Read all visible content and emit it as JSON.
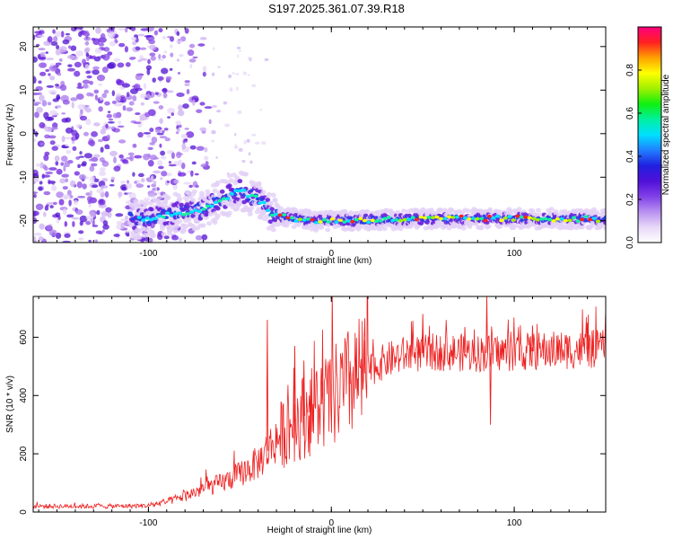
{
  "title": "S197.2025.361.07.39.R18",
  "chart_data": [
    {
      "type": "heatmap",
      "xlabel": "Height of straight line (km)",
      "ylabel": "Frequency (Hz)",
      "xlim": [
        -163,
        150
      ],
      "ylim": [
        -25,
        24.5
      ],
      "xticks": [
        -100,
        0,
        100
      ],
      "yticks": [
        -20,
        -10,
        0,
        10,
        20
      ],
      "grid": false,
      "colorbar": {
        "label": "Normalized spectral amplitude",
        "range": [
          0,
          1
        ],
        "ticks": [
          0.0,
          0.2,
          0.4,
          0.6,
          0.8
        ],
        "colors": [
          "#ffffff",
          "#e8d8f8",
          "#b890f0",
          "#8040e8",
          "#5010d8",
          "#2020e0",
          "#2080ff",
          "#00e0ff",
          "#00f0a0",
          "#10f010",
          "#a0f000",
          "#ffff00",
          "#ffa000",
          "#ff2020",
          "#ff0080"
        ]
      },
      "ridge": [
        [
          -100,
          -19.5
        ],
        [
          -90,
          -18.5
        ],
        [
          -80,
          -18
        ],
        [
          -70,
          -17.5
        ],
        [
          -60,
          -15
        ],
        [
          -50,
          -13
        ],
        [
          -40,
          -15
        ],
        [
          -32,
          -18.5
        ],
        [
          -20,
          -19.5
        ],
        [
          -10,
          -20
        ],
        [
          0,
          -20
        ],
        [
          20,
          -19.8
        ],
        [
          50,
          -19.6
        ],
        [
          80,
          -19.5
        ],
        [
          100,
          -19.5
        ],
        [
          130,
          -19.5
        ],
        [
          150,
          -19.6
        ]
      ]
    },
    {
      "type": "line",
      "xlabel": "Height of straight line (km)",
      "ylabel": "SNR (10 * v/v)",
      "xlim": [
        -163,
        150
      ],
      "ylim": [
        0,
        740
      ],
      "xticks": [
        -100,
        0,
        100
      ],
      "yticks": [
        0,
        200,
        400,
        600
      ],
      "grid": false,
      "series_color": "#ee2020",
      "trend": [
        [
          -163,
          20
        ],
        [
          -120,
          20
        ],
        [
          -100,
          22
        ],
        [
          -90,
          35
        ],
        [
          -80,
          55
        ],
        [
          -70,
          80
        ],
        [
          -60,
          100
        ],
        [
          -50,
          130
        ],
        [
          -40,
          170
        ],
        [
          -30,
          250
        ],
        [
          -20,
          310
        ],
        [
          -10,
          350
        ],
        [
          0,
          390
        ],
        [
          10,
          440
        ],
        [
          20,
          485
        ],
        [
          30,
          520
        ],
        [
          40,
          540
        ],
        [
          60,
          550
        ],
        [
          80,
          545
        ],
        [
          100,
          548
        ],
        [
          120,
          555
        ],
        [
          150,
          560
        ]
      ],
      "spikes": [
        [
          -35,
          660
        ],
        [
          -20,
          570
        ],
        [
          -15,
          520
        ],
        [
          -12,
          400
        ],
        [
          -5,
          445
        ],
        [
          10,
          480
        ],
        [
          18,
          590
        ],
        [
          50,
          680
        ],
        [
          73,
          635
        ],
        [
          85,
          740
        ],
        [
          87,
          300
        ],
        [
          110,
          640
        ],
        [
          140,
          650
        ]
      ]
    }
  ]
}
